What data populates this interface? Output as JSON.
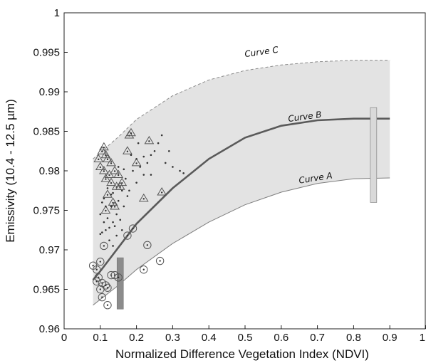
{
  "chart_data": {
    "type": "scatter",
    "title": "",
    "xlabel": "Normalized Difference Vegetation Index (NDVI)",
    "ylabel": "Emissivity (10.4 - 12.5 µm)",
    "xlim": [
      0,
      1
    ],
    "ylim": [
      0.96,
      1.0
    ],
    "xticks": [
      "0",
      "0.1",
      "0.2",
      "0.3",
      "0.4",
      "0.5",
      "0.6",
      "0.7",
      "0.8",
      "0.9",
      "1"
    ],
    "yticks": [
      "0.96",
      "0.965",
      "0.97",
      "0.975",
      "0.98",
      "0.985",
      "0.99",
      "0.995",
      "1"
    ],
    "grid": false,
    "band": {
      "x": [
        0.08,
        0.15,
        0.2,
        0.3,
        0.4,
        0.5,
        0.6,
        0.7,
        0.8,
        0.9
      ],
      "lower": [
        0.963,
        0.9655,
        0.9675,
        0.9708,
        0.9735,
        0.9757,
        0.9773,
        0.9784,
        0.979,
        0.9791
      ],
      "upper": [
        0.9815,
        0.9843,
        0.9865,
        0.9895,
        0.9915,
        0.9927,
        0.9934,
        0.9938,
        0.994,
        0.994
      ],
      "color": "#e3e3e3"
    },
    "curves": [
      {
        "name": "Curve A",
        "style": "solid-thin",
        "color": "#7f7f7f",
        "x": [
          0.08,
          0.15,
          0.2,
          0.3,
          0.4,
          0.5,
          0.6,
          0.7,
          0.8,
          0.9
        ],
        "y": [
          0.963,
          0.9655,
          0.9675,
          0.9708,
          0.9735,
          0.9757,
          0.9773,
          0.9784,
          0.979,
          0.9791
        ]
      },
      {
        "name": "Curve B",
        "style": "solid-thick",
        "color": "#5a5a5a",
        "x": [
          0.08,
          0.1,
          0.15,
          0.2,
          0.3,
          0.4,
          0.5,
          0.6,
          0.7,
          0.8,
          0.9
        ],
        "y": [
          0.9662,
          0.9673,
          0.9703,
          0.9733,
          0.9778,
          0.9815,
          0.9842,
          0.9857,
          0.9864,
          0.9866,
          0.9866
        ]
      },
      {
        "name": "Curve C",
        "style": "dashed",
        "color": "#8a8a8a",
        "x": [
          0.08,
          0.15,
          0.2,
          0.3,
          0.4,
          0.5,
          0.6,
          0.7,
          0.8,
          0.9
        ],
        "y": [
          0.9815,
          0.9843,
          0.9865,
          0.9895,
          0.9915,
          0.9927,
          0.9934,
          0.9938,
          0.994,
          0.994
        ]
      }
    ],
    "curve_labels": [
      {
        "text": "Curve C",
        "x": 0.5,
        "y": 0.9944,
        "angle": -8
      },
      {
        "text": "Curve B",
        "x": 0.62,
        "y": 0.9862,
        "angle": -8
      },
      {
        "text": "Curve A",
        "x": 0.65,
        "y": 0.9784,
        "angle": -9
      }
    ],
    "bars": [
      {
        "x": 0.155,
        "y0": 0.9625,
        "y1": 0.969,
        "color": "#8c8c8c"
      },
      {
        "x": 0.855,
        "y0": 0.976,
        "y1": 0.988,
        "color": "#d9d9d9"
      }
    ],
    "series": [
      {
        "name": "triangles",
        "marker": "triangle",
        "points": [
          [
            0.095,
            0.9815
          ],
          [
            0.105,
            0.9825
          ],
          [
            0.11,
            0.983
          ],
          [
            0.115,
            0.982
          ],
          [
            0.12,
            0.9815
          ],
          [
            0.13,
            0.981
          ],
          [
            0.1,
            0.9805
          ],
          [
            0.11,
            0.98
          ],
          [
            0.125,
            0.9795
          ],
          [
            0.14,
            0.98
          ],
          [
            0.15,
            0.9795
          ],
          [
            0.115,
            0.979
          ],
          [
            0.13,
            0.9785
          ],
          [
            0.145,
            0.978
          ],
          [
            0.155,
            0.978
          ],
          [
            0.16,
            0.9785
          ],
          [
            0.12,
            0.977
          ],
          [
            0.135,
            0.976
          ],
          [
            0.115,
            0.975
          ],
          [
            0.14,
            0.9755
          ],
          [
            0.18,
            0.9845
          ],
          [
            0.185,
            0.9848
          ],
          [
            0.235,
            0.9838
          ],
          [
            0.175,
            0.9825
          ],
          [
            0.22,
            0.9765
          ],
          [
            0.27,
            0.9773
          ],
          [
            0.2,
            0.981
          ]
        ]
      },
      {
        "name": "circles",
        "marker": "circle-dot",
        "points": [
          [
            0.08,
            0.968
          ],
          [
            0.09,
            0.9675
          ],
          [
            0.1,
            0.9685
          ],
          [
            0.11,
            0.9705
          ],
          [
            0.095,
            0.9665
          ],
          [
            0.105,
            0.9658
          ],
          [
            0.1,
            0.965
          ],
          [
            0.12,
            0.9652
          ],
          [
            0.13,
            0.9668
          ],
          [
            0.14,
            0.9668
          ],
          [
            0.115,
            0.9655
          ],
          [
            0.105,
            0.964
          ],
          [
            0.12,
            0.963
          ],
          [
            0.15,
            0.9665
          ],
          [
            0.175,
            0.9718
          ],
          [
            0.19,
            0.9727
          ],
          [
            0.23,
            0.9706
          ],
          [
            0.22,
            0.9675
          ],
          [
            0.265,
            0.9686
          ],
          [
            0.09,
            0.966
          ]
        ]
      },
      {
        "name": "dots",
        "marker": "dot",
        "points": [
          [
            0.1,
            0.9745
          ],
          [
            0.105,
            0.976
          ],
          [
            0.11,
            0.9735
          ],
          [
            0.115,
            0.9725
          ],
          [
            0.12,
            0.974
          ],
          [
            0.125,
            0.9712
          ],
          [
            0.13,
            0.9755
          ],
          [
            0.135,
            0.9705
          ],
          [
            0.14,
            0.973
          ],
          [
            0.145,
            0.9718
          ],
          [
            0.11,
            0.9765
          ],
          [
            0.12,
            0.9778
          ],
          [
            0.13,
            0.977
          ],
          [
            0.15,
            0.9762
          ],
          [
            0.16,
            0.9775
          ],
          [
            0.165,
            0.9755
          ],
          [
            0.17,
            0.979
          ],
          [
            0.18,
            0.9775
          ],
          [
            0.19,
            0.98
          ],
          [
            0.2,
            0.9815
          ],
          [
            0.21,
            0.9805
          ],
          [
            0.22,
            0.9818
          ],
          [
            0.23,
            0.981
          ],
          [
            0.24,
            0.9795
          ],
          [
            0.25,
            0.9825
          ],
          [
            0.26,
            0.9835
          ],
          [
            0.27,
            0.9845
          ],
          [
            0.28,
            0.981
          ],
          [
            0.3,
            0.9805
          ],
          [
            0.32,
            0.98
          ],
          [
            0.33,
            0.9797
          ],
          [
            0.2,
            0.9785
          ],
          [
            0.175,
            0.9768
          ],
          [
            0.145,
            0.9745
          ],
          [
            0.135,
            0.9735
          ],
          [
            0.125,
            0.9728
          ],
          [
            0.155,
            0.9738
          ],
          [
            0.1,
            0.972
          ],
          [
            0.115,
            0.9755
          ],
          [
            0.185,
            0.982
          ],
          [
            0.205,
            0.9835
          ],
          [
            0.24,
            0.982
          ],
          [
            0.29,
            0.9825
          ],
          [
            0.22,
            0.9795
          ],
          [
            0.16,
            0.9725
          ],
          [
            0.105,
            0.9722
          ],
          [
            0.135,
            0.9772
          ],
          [
            0.15,
            0.9805
          ],
          [
            0.165,
            0.9802
          ]
        ]
      }
    ]
  }
}
